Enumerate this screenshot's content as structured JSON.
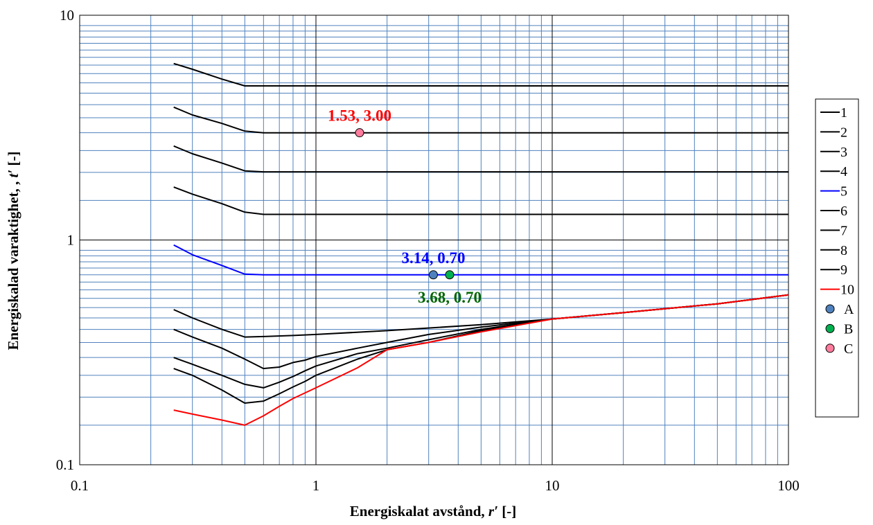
{
  "chart_data": {
    "type": "line",
    "xlabel_main": "Energiskalat avstånd, ",
    "xlabel_var": "r′",
    "xlabel_unit": " [-]",
    "ylabel_main": "Energiskalad varaktighet, , ",
    "ylabel_var": "t′",
    "ylabel_unit": " [-]",
    "x_scale": "log",
    "y_scale": "log",
    "xlim": [
      0.1,
      100
    ],
    "ylim": [
      0.1,
      10
    ],
    "x_ticks": [
      {
        "value": 0.1,
        "label": "0.1"
      },
      {
        "value": 1,
        "label": "1"
      },
      {
        "value": 10,
        "label": "10"
      },
      {
        "value": 100,
        "label": "100"
      }
    ],
    "y_ticks": [
      {
        "value": 0.1,
        "label": "0.1"
      },
      {
        "value": 1,
        "label": "1"
      },
      {
        "value": 10,
        "label": "10"
      }
    ],
    "grid": true,
    "legend_position": "right",
    "series": [
      {
        "name": "1",
        "color": "#000000",
        "points": [
          [
            0.25,
            6.1
          ],
          [
            0.3,
            5.75
          ],
          [
            0.4,
            5.2
          ],
          [
            0.5,
            4.85
          ],
          [
            1,
            4.85
          ],
          [
            10,
            4.85
          ],
          [
            100,
            4.85
          ]
        ]
      },
      {
        "name": "2",
        "color": "#000000",
        "points": [
          [
            0.25,
            3.9
          ],
          [
            0.3,
            3.6
          ],
          [
            0.4,
            3.3
          ],
          [
            0.5,
            3.05
          ],
          [
            0.6,
            3.0
          ],
          [
            1,
            3.0
          ],
          [
            10,
            3.0
          ],
          [
            100,
            3.0
          ]
        ]
      },
      {
        "name": "3",
        "color": "#000000",
        "points": [
          [
            0.25,
            2.62
          ],
          [
            0.3,
            2.42
          ],
          [
            0.4,
            2.2
          ],
          [
            0.5,
            2.03
          ],
          [
            0.6,
            2.01
          ],
          [
            1,
            2.01
          ],
          [
            10,
            2.01
          ],
          [
            100,
            2.01
          ]
        ]
      },
      {
        "name": "4",
        "color": "#000000",
        "points": [
          [
            0.25,
            1.72
          ],
          [
            0.3,
            1.6
          ],
          [
            0.4,
            1.45
          ],
          [
            0.5,
            1.33
          ],
          [
            0.6,
            1.3
          ],
          [
            1,
            1.3
          ],
          [
            10,
            1.3
          ],
          [
            100,
            1.3
          ]
        ]
      },
      {
        "name": "5",
        "color": "#0000ff",
        "points": [
          [
            0.25,
            0.95
          ],
          [
            0.3,
            0.86
          ],
          [
            0.4,
            0.77
          ],
          [
            0.5,
            0.705
          ],
          [
            0.6,
            0.7
          ],
          [
            1,
            0.7
          ],
          [
            10,
            0.7
          ],
          [
            100,
            0.7
          ]
        ]
      },
      {
        "name": "6",
        "color": "#000000",
        "points": [
          [
            0.25,
            0.49
          ],
          [
            0.3,
            0.45
          ],
          [
            0.4,
            0.4
          ],
          [
            0.5,
            0.37
          ],
          [
            0.6,
            0.372
          ],
          [
            0.8,
            0.376
          ],
          [
            1,
            0.38
          ],
          [
            2,
            0.395
          ],
          [
            5,
            0.42
          ],
          [
            10,
            0.445
          ],
          [
            20,
            0.475
          ],
          [
            50,
            0.52
          ],
          [
            100,
            0.57
          ]
        ]
      },
      {
        "name": "7",
        "color": "#000000",
        "points": [
          [
            0.25,
            0.4
          ],
          [
            0.3,
            0.37
          ],
          [
            0.4,
            0.33
          ],
          [
            0.5,
            0.295
          ],
          [
            0.6,
            0.268
          ],
          [
            0.7,
            0.272
          ],
          [
            0.8,
            0.285
          ],
          [
            0.9,
            0.292
          ],
          [
            1,
            0.303
          ],
          [
            1.5,
            0.33
          ],
          [
            2,
            0.35
          ],
          [
            3,
            0.38
          ],
          [
            5,
            0.41
          ],
          [
            10,
            0.445
          ],
          [
            20,
            0.475
          ],
          [
            50,
            0.52
          ],
          [
            100,
            0.57
          ]
        ]
      },
      {
        "name": "8",
        "color": "#000000",
        "points": [
          [
            0.25,
            0.3
          ],
          [
            0.3,
            0.28
          ],
          [
            0.4,
            0.25
          ],
          [
            0.5,
            0.228
          ],
          [
            0.6,
            0.22
          ],
          [
            0.7,
            0.233
          ],
          [
            0.8,
            0.247
          ],
          [
            0.9,
            0.262
          ],
          [
            1,
            0.275
          ],
          [
            1.5,
            0.312
          ],
          [
            2,
            0.33
          ],
          [
            3,
            0.36
          ],
          [
            5,
            0.4
          ],
          [
            10,
            0.445
          ],
          [
            20,
            0.475
          ],
          [
            50,
            0.52
          ],
          [
            100,
            0.57
          ]
        ]
      },
      {
        "name": "9",
        "color": "#000000",
        "points": [
          [
            0.25,
            0.268
          ],
          [
            0.3,
            0.25
          ],
          [
            0.4,
            0.215
          ],
          [
            0.5,
            0.188
          ],
          [
            0.6,
            0.192
          ],
          [
            0.7,
            0.207
          ],
          [
            0.8,
            0.222
          ],
          [
            0.9,
            0.235
          ],
          [
            1,
            0.25
          ],
          [
            1.5,
            0.295
          ],
          [
            2,
            0.325
          ],
          [
            3,
            0.35
          ],
          [
            5,
            0.395
          ],
          [
            10,
            0.445
          ],
          [
            20,
            0.475
          ],
          [
            50,
            0.52
          ],
          [
            100,
            0.57
          ]
        ]
      },
      {
        "name": "10",
        "color": "#ff0000",
        "points": [
          [
            0.25,
            0.175
          ],
          [
            0.3,
            0.168
          ],
          [
            0.4,
            0.158
          ],
          [
            0.5,
            0.15
          ],
          [
            0.6,
            0.165
          ],
          [
            0.7,
            0.182
          ],
          [
            0.8,
            0.197
          ],
          [
            1,
            0.22
          ],
          [
            1.5,
            0.27
          ],
          [
            2,
            0.325
          ],
          [
            3,
            0.35
          ],
          [
            5,
            0.39
          ],
          [
            10,
            0.445
          ],
          [
            20,
            0.475
          ],
          [
            50,
            0.52
          ],
          [
            100,
            0.57
          ]
        ]
      }
    ],
    "markers": [
      {
        "name": "A",
        "x": 3.14,
        "y": 0.7,
        "color": "#4f81bd",
        "label": "3.14, 0.70",
        "label_color": "#0000ff",
        "label_pos": "above"
      },
      {
        "name": "B",
        "x": 3.68,
        "y": 0.7,
        "color": "#00b050",
        "label": "3.68, 0.70",
        "label_color": "#006400",
        "label_pos": "below"
      },
      {
        "name": "C",
        "x": 1.53,
        "y": 3.0,
        "color": "#ff7c9c",
        "label": "1.53, 3.00",
        "label_color": "#ff0000",
        "label_pos": "above"
      }
    ]
  }
}
